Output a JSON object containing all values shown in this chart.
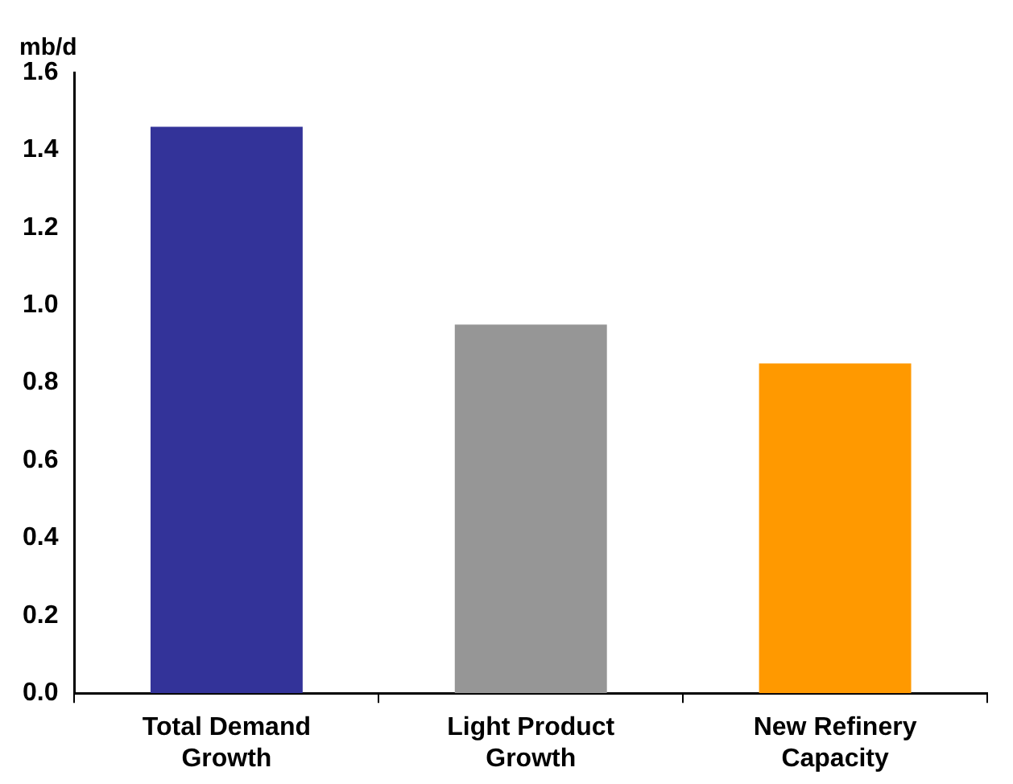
{
  "chart_data": {
    "type": "bar",
    "ylabel": "mb/d",
    "categories": [
      "Total Demand Growth",
      "Light Product Growth",
      "New Refinery Capacity"
    ],
    "values": [
      1.46,
      0.95,
      0.85
    ],
    "colors": [
      "#333399",
      "#969696",
      "#ff9900"
    ],
    "ylim": [
      0,
      1.6
    ],
    "yticks": [
      {
        "value": 0,
        "label": "0.0"
      },
      0.2,
      0.4,
      0.6,
      0.8,
      {
        "value": 1,
        "label": "1.0"
      },
      1.2,
      1.4,
      1.6
    ],
    "grid": false,
    "legend": false
  }
}
